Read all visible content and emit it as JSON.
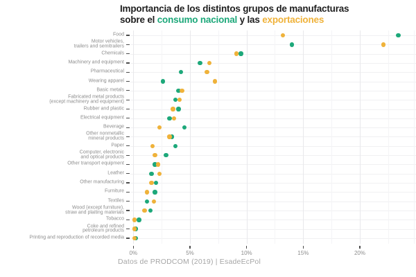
{
  "title": {
    "line1": "Importancia de los distintos grupos de manufacturas",
    "line2_prefix": "sobre el ",
    "line2_consumo": "consumo nacional",
    "line2_mid": " y las ",
    "line2_export": "exportaciones"
  },
  "caption": "Datos de PRODCOM (2019) | EsadeEcPol",
  "colors": {
    "consumo_nacional": "#1da87a",
    "exportaciones": "#efb23a",
    "title_text": "#1e1e1e",
    "axis_label_gray": "#8d8d8d",
    "caption_gray": "#a6a6a6"
  },
  "chart_data": {
    "type": "scatter",
    "subtype": "horizontal-dot-plot",
    "title": "Importancia de los distintos grupos de manufacturas sobre el consumo nacional y las exportaciones",
    "xlabel": "",
    "ylabel": "",
    "x_ticks": [
      "0%",
      "5%",
      "10%",
      "15%",
      "20%"
    ],
    "x_tick_values": [
      0,
      5,
      10,
      15,
      20
    ],
    "xlim": [
      0,
      25
    ],
    "grid": "light vertical gridlines every 2.5% and horizontal gridline per category row",
    "legend": "encoded in title: consumo nacional = green, exportaciones = yellow",
    "categories": [
      "Food",
      "Motor vehicles, trailers and semitrailers",
      "Chemicals",
      "Machinery and equipment",
      "Pharmaceutical",
      "Wearing apparel",
      "Basic metals",
      "Fabricated metal products (except machinery and equipment)",
      "Rubber and plastic",
      "Electrical equipment",
      "Beverage",
      "Other nonmetallic mineral products",
      "Paper",
      "Computer, electronic and optical products",
      "Other transport equipment",
      "Leather",
      "Other manufacturing",
      "Furniture",
      "Textiles",
      "Wood (except furniture), straw and plaiting materials",
      "Tobacco",
      "Coke and refined petroleum products",
      "Printing and reproduction of recorded media"
    ],
    "category_label_lines": [
      [
        "Food"
      ],
      [
        "Motor vehicles,",
        "trailers and semitrailers"
      ],
      [
        "Chemicals"
      ],
      [
        "Machinery and equipment"
      ],
      [
        "Pharmaceutical"
      ],
      [
        "Wearing apparel"
      ],
      [
        "Basic metals"
      ],
      [
        "Fabricated metal products",
        "(except machinery and equipment)"
      ],
      [
        "Rubber and plastic"
      ],
      [
        "Electrical equipment"
      ],
      [
        "Beverage"
      ],
      [
        "Other nonmetallic",
        "mineral products"
      ],
      [
        "Paper"
      ],
      [
        "Computer, electronic",
        "and optical products"
      ],
      [
        "Other transport equipment"
      ],
      [
        "Leather"
      ],
      [
        "Other manufacturing"
      ],
      [
        "Furniture"
      ],
      [
        "Textiles"
      ],
      [
        "Wood (except furniture),",
        "straw and plaiting materials"
      ],
      [
        "Tobacco"
      ],
      [
        "Coke and refined",
        "petroleum products"
      ],
      [
        "Printing and reproduction of recorded media"
      ]
    ],
    "series": [
      {
        "name": "consumo nacional",
        "color": "#1da87a",
        "values": [
          23.4,
          14.0,
          9.5,
          5.9,
          4.2,
          2.6,
          4.0,
          3.7,
          4.0,
          3.2,
          4.5,
          3.4,
          3.7,
          2.9,
          1.9,
          1.6,
          2.0,
          1.9,
          1.2,
          1.5,
          0.5,
          0.2,
          0.2
        ]
      },
      {
        "name": "exportaciones",
        "color": "#efb23a",
        "values": [
          13.2,
          22.1,
          9.1,
          6.7,
          6.5,
          7.2,
          4.3,
          4.1,
          3.5,
          3.6,
          2.3,
          3.2,
          1.7,
          1.9,
          2.2,
          2.3,
          1.6,
          1.2,
          1.8,
          1.0,
          0.1,
          0.1,
          0.1
        ]
      }
    ]
  }
}
